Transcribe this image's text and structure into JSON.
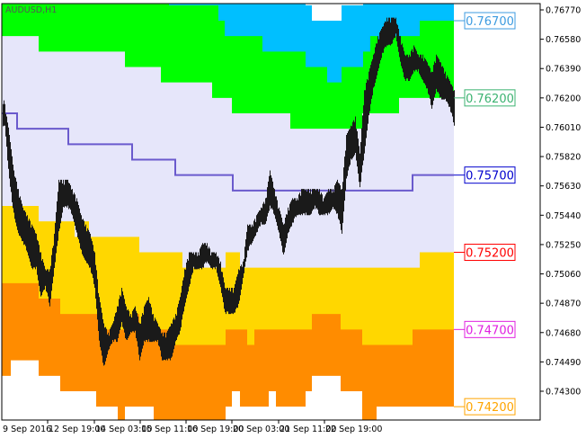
{
  "chart_data": {
    "type": "bar",
    "symbol": "AUDUSD,H1",
    "x_tick_labels": [
      "9 Sep 2016",
      "12 Sep 19:00",
      "14 Sep 03:00",
      "15 Sep 11:00",
      "16 Sep 19:00",
      "20 Sep 03:00",
      "21 Sep 11:00",
      "22 Sep 19:00"
    ],
    "y_tick_labels": [
      "0.76770",
      "0.76580",
      "0.76390",
      "0.76200",
      "0.76010",
      "0.75820",
      "0.75630",
      "0.75440",
      "0.75250",
      "0.75060",
      "0.74870",
      "0.74680",
      "0.74490",
      "0.74300"
    ],
    "ylim": [
      0.741,
      0.7685
    ],
    "levels": [
      {
        "label": "0.76700",
        "price": 0.767,
        "color": "#3d9be0"
      },
      {
        "label": "0.76200",
        "price": 0.762,
        "color": "#3cb371"
      },
      {
        "label": "0.75700",
        "price": 0.757,
        "color": "#0000cd"
      },
      {
        "label": "0.75200",
        "price": 0.752,
        "color": "#ff0000"
      },
      {
        "label": "0.74700",
        "price": 0.747,
        "color": "#e020e0"
      },
      {
        "label": "0.74200",
        "price": 0.742,
        "color": "#ffa500"
      }
    ],
    "band_colors": [
      "#ffffff",
      "#00bfff",
      "#00ff00",
      "#e6e6fa",
      "#ffd700",
      "#ff8c00",
      "#ffffff"
    ],
    "band_boundaries": [
      [
        [
          0,
          0.769
        ],
        [
          338,
          0.768
        ],
        [
          345,
          0.767
        ],
        [
          378,
          0.768
        ],
        [
          402,
          0.769
        ]
      ],
      [
        [
          0,
          0.769
        ],
        [
          186,
          0.768
        ],
        [
          241,
          0.767
        ],
        [
          248,
          0.766
        ],
        [
          290,
          0.765
        ],
        [
          338,
          0.764
        ],
        [
          362,
          0.763
        ],
        [
          378,
          0.764
        ],
        [
          402,
          0.765
        ],
        [
          410,
          0.766
        ],
        [
          418,
          0.765
        ],
        [
          425,
          0.766
        ],
        [
          465,
          0.767
        ]
      ],
      [
        [
          0,
          0.766
        ],
        [
          41,
          0.765
        ],
        [
          137,
          0.764
        ],
        [
          177,
          0.763
        ],
        [
          234,
          0.762
        ],
        [
          256,
          0.761
        ],
        [
          321,
          0.76
        ],
        [
          401,
          0.761
        ],
        [
          442,
          0.762
        ]
      ],
      [
        [
          0,
          0.755
        ],
        [
          41,
          0.754
        ],
        [
          81,
          0.753
        ],
        [
          88,
          0.754
        ],
        [
          97,
          0.753
        ],
        [
          153,
          0.752
        ],
        [
          201,
          0.751
        ],
        [
          249,
          0.752
        ],
        [
          265,
          0.751
        ],
        [
          465,
          0.752
        ]
      ],
      [
        [
          0,
          0.75
        ],
        [
          41,
          0.749
        ],
        [
          65,
          0.748
        ],
        [
          110,
          0.747
        ],
        [
          145,
          0.748
        ],
        [
          153,
          0.747
        ],
        [
          193,
          0.746
        ],
        [
          249,
          0.747
        ],
        [
          273,
          0.746
        ],
        [
          281,
          0.747
        ],
        [
          345,
          0.748
        ],
        [
          377,
          0.747
        ],
        [
          401,
          0.746
        ],
        [
          457,
          0.747
        ]
      ],
      [
        [
          0,
          0.744
        ],
        [
          10,
          0.745
        ],
        [
          41,
          0.744
        ],
        [
          65,
          0.743
        ],
        [
          105,
          0.742
        ],
        [
          129,
          0.741
        ],
        [
          137,
          0.742
        ],
        [
          169,
          0.741
        ],
        [
          249,
          0.742
        ],
        [
          256,
          0.743
        ],
        [
          265,
          0.742
        ],
        [
          297,
          0.743
        ],
        [
          305,
          0.742
        ],
        [
          338,
          0.743
        ],
        [
          345,
          0.744
        ],
        [
          377,
          0.743
        ],
        [
          401,
          0.741
        ],
        [
          417,
          0.742
        ]
      ]
    ],
    "midline": {
      "color": "#6a5acd",
      "steps": [
        [
          0,
          0.761
        ],
        [
          17,
          0.76
        ],
        [
          74,
          0.759
        ],
        [
          145,
          0.758
        ],
        [
          193,
          0.757
        ],
        [
          257,
          0.756
        ],
        [
          457,
          0.757
        ]
      ]
    },
    "bar_color": "#1a1a1a",
    "bars_high_low": [
      [
        0.7616,
        0.7602
      ],
      [
        0.7596,
        0.7567
      ],
      [
        0.7573,
        0.7544
      ],
      [
        0.7561,
        0.7532
      ],
      [
        0.7549,
        0.7526
      ],
      [
        0.7544,
        0.752
      ],
      [
        0.7538,
        0.7509
      ],
      [
        0.7532,
        0.7509
      ],
      [
        0.752,
        0.7491
      ],
      [
        0.7509,
        0.7497
      ],
      [
        0.7509,
        0.7485
      ],
      [
        0.7532,
        0.7509
      ],
      [
        0.7567,
        0.7532
      ],
      [
        0.7567,
        0.7549
      ],
      [
        0.7567,
        0.7549
      ],
      [
        0.7561,
        0.7544
      ],
      [
        0.7555,
        0.7532
      ],
      [
        0.7544,
        0.752
      ],
      [
        0.7538,
        0.7514
      ],
      [
        0.7532,
        0.7509
      ],
      [
        0.752,
        0.7497
      ],
      [
        0.7491,
        0.7462
      ],
      [
        0.7474,
        0.7445
      ],
      [
        0.7468,
        0.7456
      ],
      [
        0.7474,
        0.7462
      ],
      [
        0.7485,
        0.7462
      ],
      [
        0.7497,
        0.7474
      ],
      [
        0.7485,
        0.7462
      ],
      [
        0.748,
        0.7468
      ],
      [
        0.7485,
        0.7468
      ],
      [
        0.7474,
        0.745
      ],
      [
        0.7485,
        0.7462
      ],
      [
        0.7491,
        0.7462
      ],
      [
        0.748,
        0.7462
      ],
      [
        0.7474,
        0.7462
      ],
      [
        0.7468,
        0.745
      ],
      [
        0.7468,
        0.745
      ],
      [
        0.7474,
        0.745
      ],
      [
        0.748,
        0.7462
      ],
      [
        0.7491,
        0.7468
      ],
      [
        0.7509,
        0.7485
      ],
      [
        0.752,
        0.7497
      ],
      [
        0.752,
        0.7509
      ],
      [
        0.752,
        0.7509
      ],
      [
        0.7526,
        0.7509
      ],
      [
        0.7526,
        0.7514
      ],
      [
        0.752,
        0.7509
      ],
      [
        0.752,
        0.7509
      ],
      [
        0.7514,
        0.7497
      ],
      [
        0.7497,
        0.748
      ],
      [
        0.7497,
        0.748
      ],
      [
        0.7497,
        0.748
      ],
      [
        0.7509,
        0.7485
      ],
      [
        0.7514,
        0.7503
      ],
      [
        0.7538,
        0.752
      ],
      [
        0.7538,
        0.7526
      ],
      [
        0.7544,
        0.7532
      ],
      [
        0.7549,
        0.7538
      ],
      [
        0.7555,
        0.7538
      ],
      [
        0.7573,
        0.7549
      ],
      [
        0.7561,
        0.7544
      ],
      [
        0.7549,
        0.7532
      ],
      [
        0.7538,
        0.7517
      ],
      [
        0.7549,
        0.7532
      ],
      [
        0.7555,
        0.7538
      ],
      [
        0.7555,
        0.7544
      ],
      [
        0.7561,
        0.7544
      ],
      [
        0.7561,
        0.7544
      ],
      [
        0.7561,
        0.7544
      ],
      [
        0.7561,
        0.7549
      ],
      [
        0.7561,
        0.7544
      ],
      [
        0.7555,
        0.7544
      ],
      [
        0.7561,
        0.7544
      ],
      [
        0.7561,
        0.7549
      ],
      [
        0.7567,
        0.7544
      ],
      [
        0.7561,
        0.7532
      ],
      [
        0.7596,
        0.7567
      ],
      [
        0.7602,
        0.7579
      ],
      [
        0.7608,
        0.7584
      ],
      [
        0.7584,
        0.7561
      ],
      [
        0.7625,
        0.7584
      ],
      [
        0.7637,
        0.7608
      ],
      [
        0.7648,
        0.7625
      ],
      [
        0.766,
        0.7637
      ],
      [
        0.7666,
        0.7648
      ],
      [
        0.7672,
        0.7654
      ],
      [
        0.7672,
        0.7654
      ],
      [
        0.7672,
        0.766
      ],
      [
        0.766,
        0.7643
      ],
      [
        0.7648,
        0.7631
      ],
      [
        0.7648,
        0.7631
      ],
      [
        0.7654,
        0.7637
      ],
      [
        0.7648,
        0.7637
      ],
      [
        0.7648,
        0.7631
      ],
      [
        0.7643,
        0.7625
      ],
      [
        0.7637,
        0.7613
      ],
      [
        0.7648,
        0.7625
      ],
      [
        0.7643,
        0.7619
      ],
      [
        0.7637,
        0.7619
      ],
      [
        0.7631,
        0.7613
      ],
      [
        0.7625,
        0.7602
      ]
    ]
  }
}
